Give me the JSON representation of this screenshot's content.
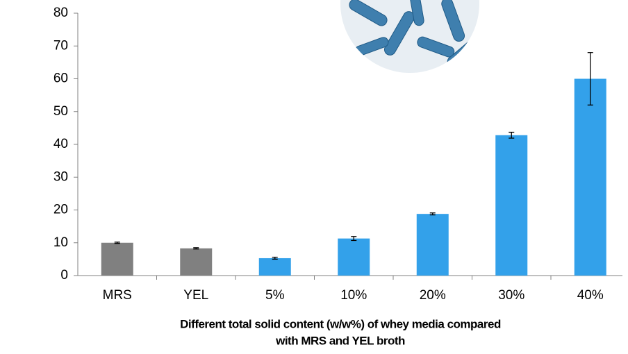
{
  "chart_data": {
    "type": "bar",
    "categories": [
      "MRS",
      "YEL",
      "5%",
      "10%",
      "20%",
      "30%",
      "40%"
    ],
    "values": [
      10,
      8.3,
      5.3,
      11.3,
      18.8,
      42.8,
      60
    ],
    "errors": [
      0.2,
      0.2,
      0.3,
      0.6,
      0.3,
      0.9,
      8
    ],
    "colors": [
      "#808080",
      "#808080",
      "#33a1ea",
      "#33a1ea",
      "#33a1ea",
      "#33a1ea",
      "#33a1ea"
    ],
    "xlabel": [
      "Different total solid content (w/w%) of whey media compared",
      "with MRS and YEL broth"
    ],
    "ylim": [
      0,
      80
    ],
    "yticks": [
      0,
      10,
      20,
      30,
      40,
      50,
      60,
      70,
      80
    ],
    "grid": false
  }
}
